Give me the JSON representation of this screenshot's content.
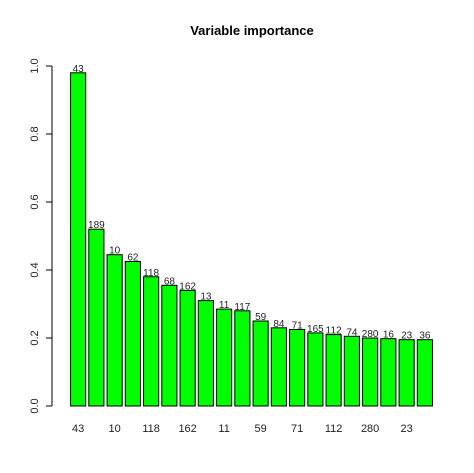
{
  "chart_data": {
    "type": "bar",
    "title": "Variable importance",
    "xlabel": "",
    "ylabel": "",
    "ylim": [
      0,
      1.0
    ],
    "yticks": [
      "0.0",
      "0.2",
      "0.4",
      "0.6",
      "0.8",
      "1.0"
    ],
    "bar_color": "#00ff00",
    "categories": [
      "43",
      "189",
      "10",
      "62",
      "118",
      "68",
      "162",
      "13",
      "11",
      "117",
      "59",
      "84",
      "71",
      "165",
      "112",
      "74",
      "280",
      "16",
      "23",
      "36"
    ],
    "values": [
      0.98,
      0.52,
      0.445,
      0.425,
      0.38,
      0.355,
      0.34,
      0.31,
      0.285,
      0.28,
      0.25,
      0.23,
      0.225,
      0.215,
      0.21,
      0.205,
      0.2,
      0.198,
      0.195,
      0.195
    ],
    "x_tick_labels": [
      "43",
      "10",
      "118",
      "162",
      "11",
      "59",
      "71",
      "112",
      "280",
      "23"
    ]
  }
}
